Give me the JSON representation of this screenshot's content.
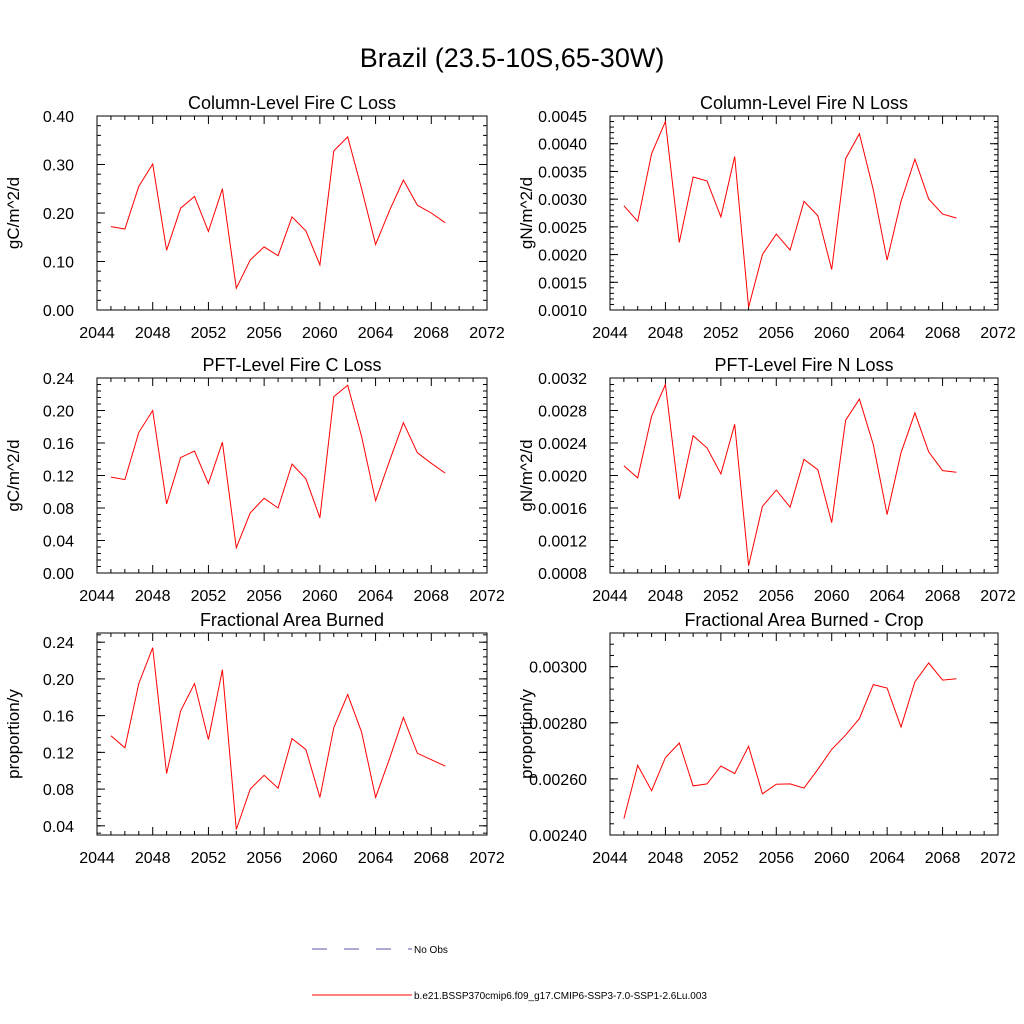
{
  "figure": {
    "title": "Brazil (23.5-10S,65-30W)"
  },
  "chart_data": [
    {
      "type": "line",
      "title": "Column-Level Fire C Loss",
      "ylabel": "gC/m^2/d",
      "xlim": [
        2044,
        2072
      ],
      "ylim": [
        0.0,
        0.4
      ],
      "xticks": [
        "2044",
        "2048",
        "2052",
        "2056",
        "2060",
        "2064",
        "2068",
        "2072"
      ],
      "yticks": [
        "0.00",
        "0.10",
        "0.20",
        "0.30",
        "0.40"
      ],
      "x": [
        2045,
        2046,
        2047,
        2048,
        2049,
        2050,
        2051,
        2052,
        2053,
        2054,
        2055,
        2056,
        2057,
        2058,
        2059,
        2060,
        2061,
        2062,
        2063,
        2064,
        2065,
        2066,
        2067,
        2068,
        2069
      ],
      "series": [
        {
          "values": [
            0.172,
            0.167,
            0.255,
            0.301,
            0.123,
            0.21,
            0.234,
            0.162,
            0.25,
            0.045,
            0.103,
            0.13,
            0.112,
            0.192,
            0.163,
            0.093,
            0.328,
            0.357,
            0.25,
            0.135,
            0.205,
            0.268,
            0.216,
            0.2,
            0.18
          ]
        }
      ]
    },
    {
      "type": "line",
      "title": "Column-Level Fire N Loss",
      "ylabel": "gN/m^2/d",
      "xlim": [
        2044,
        2072
      ],
      "ylim": [
        0.001,
        0.0045
      ],
      "xticks": [
        "2044",
        "2048",
        "2052",
        "2056",
        "2060",
        "2064",
        "2068",
        "2072"
      ],
      "yticks": [
        "0.0010",
        "0.0015",
        "0.0020",
        "0.0025",
        "0.0030",
        "0.0035",
        "0.0040",
        "0.0045"
      ],
      "x": [
        2045,
        2046,
        2047,
        2048,
        2049,
        2050,
        2051,
        2052,
        2053,
        2054,
        2055,
        2056,
        2057,
        2058,
        2059,
        2060,
        2061,
        2062,
        2063,
        2064,
        2065,
        2066,
        2067,
        2068,
        2069
      ],
      "series": [
        {
          "values": [
            0.00288,
            0.0026,
            0.00382,
            0.0044,
            0.00222,
            0.0034,
            0.00333,
            0.00268,
            0.00377,
            0.00105,
            0.002,
            0.00237,
            0.00208,
            0.00296,
            0.0027,
            0.00173,
            0.00373,
            0.00418,
            0.00317,
            0.0019,
            0.00296,
            0.00372,
            0.003,
            0.00273,
            0.00266
          ]
        }
      ]
    },
    {
      "type": "line",
      "title": "PFT-Level Fire C Loss",
      "ylabel": "gC/m^2/d",
      "xlim": [
        2044,
        2072
      ],
      "ylim": [
        0.0,
        0.24
      ],
      "xticks": [
        "2044",
        "2048",
        "2052",
        "2056",
        "2060",
        "2064",
        "2068",
        "2072"
      ],
      "yticks": [
        "0.00",
        "0.04",
        "0.08",
        "0.12",
        "0.16",
        "0.20",
        "0.24"
      ],
      "x": [
        2045,
        2046,
        2047,
        2048,
        2049,
        2050,
        2051,
        2052,
        2053,
        2054,
        2055,
        2056,
        2057,
        2058,
        2059,
        2060,
        2061,
        2062,
        2063,
        2064,
        2065,
        2066,
        2067,
        2068,
        2069
      ],
      "series": [
        {
          "values": [
            0.118,
            0.115,
            0.173,
            0.2,
            0.085,
            0.142,
            0.15,
            0.11,
            0.161,
            0.031,
            0.074,
            0.092,
            0.08,
            0.134,
            0.116,
            0.068,
            0.217,
            0.231,
            0.168,
            0.089,
            0.138,
            0.185,
            0.148,
            0.135,
            0.123
          ]
        }
      ]
    },
    {
      "type": "line",
      "title": "PFT-Level Fire N Loss",
      "ylabel": "gN/m^2/d",
      "xlim": [
        2044,
        2072
      ],
      "ylim": [
        0.0008,
        0.0032
      ],
      "xticks": [
        "2044",
        "2048",
        "2052",
        "2056",
        "2060",
        "2064",
        "2068",
        "2072"
      ],
      "yticks": [
        "0.0008",
        "0.0012",
        "0.0016",
        "0.0020",
        "0.0024",
        "0.0028",
        "0.0032"
      ],
      "x": [
        2045,
        2046,
        2047,
        2048,
        2049,
        2050,
        2051,
        2052,
        2053,
        2054,
        2055,
        2056,
        2057,
        2058,
        2059,
        2060,
        2061,
        2062,
        2063,
        2064,
        2065,
        2066,
        2067,
        2068,
        2069
      ],
      "series": [
        {
          "values": [
            0.00212,
            0.00197,
            0.00273,
            0.00312,
            0.00171,
            0.00249,
            0.00234,
            0.00202,
            0.00263,
            0.00089,
            0.00162,
            0.00182,
            0.00161,
            0.0022,
            0.00207,
            0.00142,
            0.00268,
            0.00294,
            0.00238,
            0.00152,
            0.00228,
            0.00277,
            0.00229,
            0.00206,
            0.00204
          ]
        }
      ]
    },
    {
      "type": "line",
      "title": "Fractional Area Burned",
      "ylabel": "proportion/y",
      "xlim": [
        2044,
        2072
      ],
      "ylim": [
        0.03,
        0.25
      ],
      "xticks": [
        "2044",
        "2048",
        "2052",
        "2056",
        "2060",
        "2064",
        "2068",
        "2072"
      ],
      "yticks": [
        "0.04",
        "0.08",
        "0.12",
        "0.16",
        "0.20",
        "0.24"
      ],
      "x": [
        2045,
        2046,
        2047,
        2048,
        2049,
        2050,
        2051,
        2052,
        2053,
        2054,
        2055,
        2056,
        2057,
        2058,
        2059,
        2060,
        2061,
        2062,
        2063,
        2064,
        2065,
        2066,
        2067,
        2068,
        2069
      ],
      "series": [
        {
          "values": [
            0.138,
            0.125,
            0.195,
            0.234,
            0.097,
            0.165,
            0.195,
            0.134,
            0.21,
            0.036,
            0.08,
            0.095,
            0.081,
            0.135,
            0.123,
            0.071,
            0.147,
            0.183,
            0.142,
            0.071,
            0.113,
            0.158,
            0.119,
            0.112,
            0.105
          ]
        }
      ]
    },
    {
      "type": "line",
      "title": "Fractional Area Burned - Crop",
      "ylabel": "proportion/y",
      "xlim": [
        2044,
        2072
      ],
      "ylim": [
        0.0024,
        0.00312
      ],
      "xticks": [
        "2044",
        "2048",
        "2052",
        "2056",
        "2060",
        "2064",
        "2068",
        "2072"
      ],
      "yticks": [
        "0.00240",
        "0.00260",
        "0.00280",
        "0.00300"
      ],
      "x": [
        2045,
        2046,
        2047,
        2048,
        2049,
        2050,
        2051,
        2052,
        2053,
        2054,
        2055,
        2056,
        2057,
        2058,
        2059,
        2060,
        2061,
        2062,
        2063,
        2064,
        2065,
        2066,
        2067,
        2068,
        2069
      ],
      "series": [
        {
          "values": [
            0.002458,
            0.002648,
            0.002558,
            0.002676,
            0.002728,
            0.002575,
            0.002582,
            0.002646,
            0.002619,
            0.002716,
            0.002547,
            0.002581,
            0.002582,
            0.002567,
            0.002634,
            0.002705,
            0.002756,
            0.002815,
            0.002936,
            0.002924,
            0.002785,
            0.002946,
            0.003013,
            0.002952,
            0.002957
          ]
        }
      ]
    }
  ],
  "legend": {
    "items": [
      {
        "label": "No Obs",
        "color": "#5555aa",
        "style": "dashed"
      },
      {
        "label": "b.e21.BSSP370cmip6.f09_g17.CMIP6-SSP3-7.0-SSP1-2.6Lu.003",
        "color": "#ff0000",
        "style": "solid"
      }
    ]
  }
}
